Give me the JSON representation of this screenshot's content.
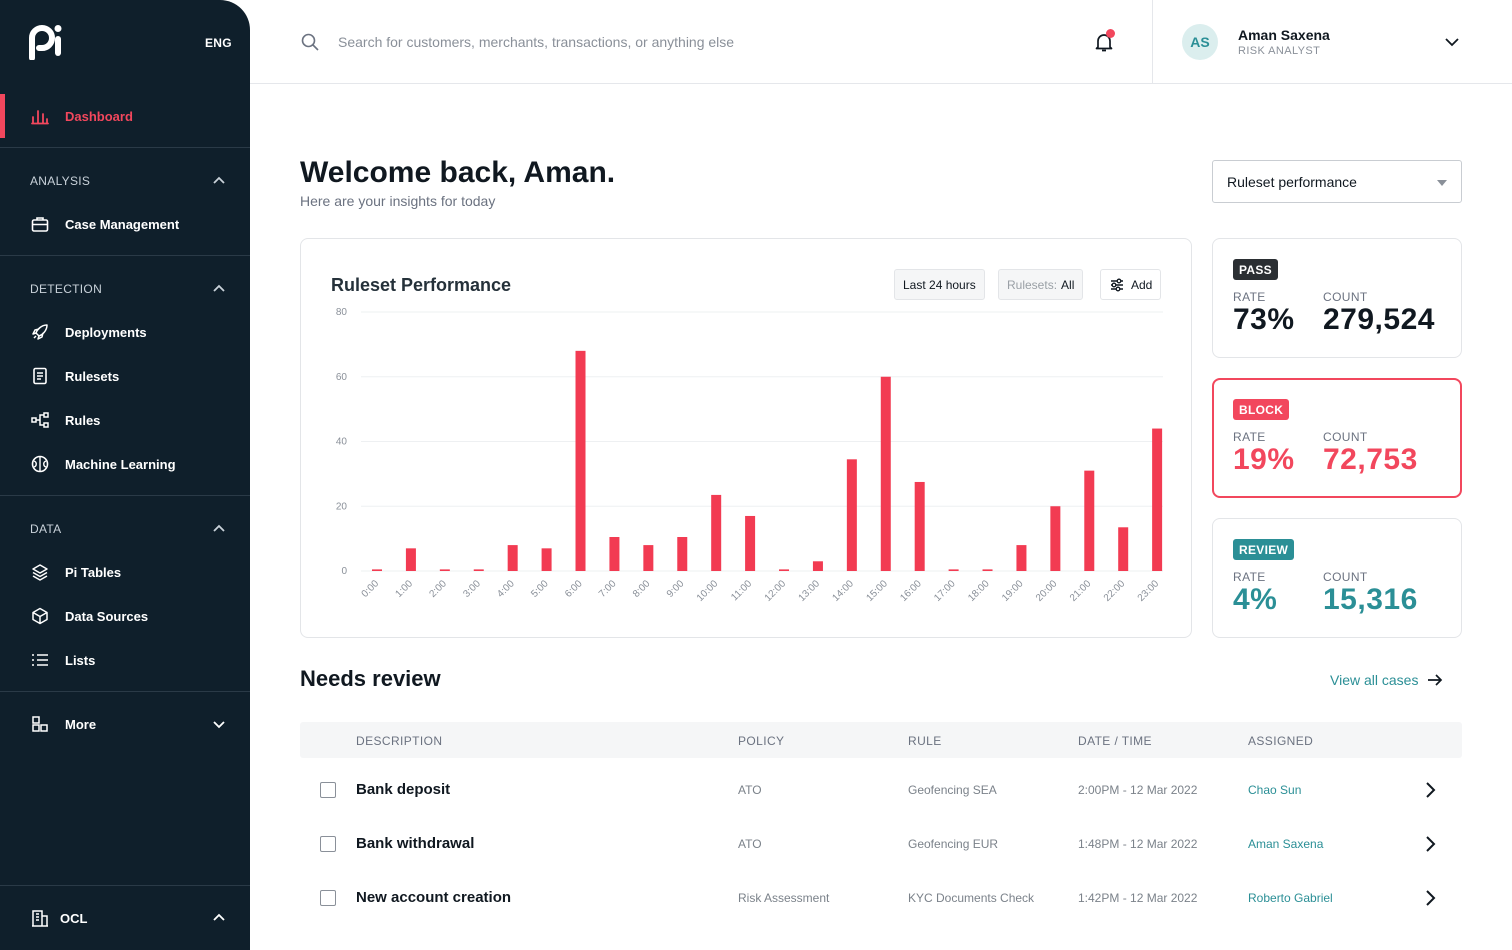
{
  "sidebar": {
    "lang": "ENG",
    "dashboard": "Dashboard",
    "sections": [
      {
        "title": "ANALYSIS",
        "items": [
          "Case Management"
        ]
      },
      {
        "title": "DETECTION",
        "items": [
          "Deployments",
          "Rulesets",
          "Rules",
          "Machine Learning"
        ]
      },
      {
        "title": "DATA",
        "items": [
          "Pi Tables",
          "Data Sources",
          "Lists"
        ]
      }
    ],
    "more": "More",
    "org": "OCL"
  },
  "header": {
    "search_placeholder": "Search for customers, merchants, transactions, or anything else",
    "user": {
      "initials": "AS",
      "name": "Aman Saxena",
      "role": "RISK ANALYST"
    }
  },
  "main": {
    "welcome": "Welcome back, Aman.",
    "subtitle": "Here are your insights for today",
    "dropdown": "Ruleset performance",
    "chart_card": {
      "title": "Ruleset Performance",
      "range_button": "Last 24 hours",
      "rulesets_label": "Rulesets:",
      "rulesets_value": "All",
      "add_button": "Add"
    },
    "stats": [
      {
        "badge": "PASS",
        "rate_label": "RATE",
        "rate": "73%",
        "count_label": "COUNT",
        "count": "279,524",
        "color": "#101820",
        "badge_bg": "#2b2f33",
        "badge_fg": "#ffffff"
      },
      {
        "badge": "BLOCK",
        "rate_label": "RATE",
        "rate": "19%",
        "count_label": "COUNT",
        "count": "72,753",
        "color": "#f2475d",
        "badge_bg": "#f2475d",
        "badge_fg": "#ffffff"
      },
      {
        "badge": "REVIEW",
        "rate_label": "RATE",
        "rate": "4%",
        "count_label": "COUNT",
        "count": "15,316",
        "color": "#2b8f96",
        "badge_bg": "#2b8f96",
        "badge_fg": "#ffffff"
      }
    ],
    "needs_review": {
      "title": "Needs review",
      "view_all": "View all cases",
      "columns": [
        "DESCRIPTION",
        "POLICY",
        "RULE",
        "DATE / TIME",
        "ASSIGNED"
      ],
      "rows": [
        {
          "description": "Bank deposit",
          "policy": "ATO",
          "rule": "Geofencing SEA",
          "datetime": "2:00PM - 12 Mar 2022",
          "assigned": "Chao Sun"
        },
        {
          "description": "Bank withdrawal",
          "policy": "ATO",
          "rule": "Geofencing EUR",
          "datetime": "1:48PM - 12 Mar 2022",
          "assigned": "Aman Saxena"
        },
        {
          "description": "New account creation",
          "policy": "Risk Assessment",
          "rule": "KYC Documents Check",
          "datetime": "1:42PM - 12 Mar 2022",
          "assigned": "Roberto Gabriel"
        }
      ]
    }
  },
  "chart_data": {
    "type": "bar",
    "categories": [
      "0:00",
      "1:00",
      "2:00",
      "3:00",
      "4:00",
      "5:00",
      "6:00",
      "7:00",
      "8:00",
      "9:00",
      "10:00",
      "11:00",
      "12:00",
      "13:00",
      "14:00",
      "15:00",
      "16:00",
      "17:00",
      "18:00",
      "19:00",
      "20:00",
      "21:00",
      "22:00",
      "23:00"
    ],
    "values": [
      0.5,
      7,
      0.5,
      0.5,
      8,
      7,
      68,
      10.5,
      8,
      10.5,
      23.5,
      17,
      0.5,
      3,
      34.5,
      60,
      27.5,
      0.5,
      0.5,
      8,
      20,
      31,
      13.5,
      44
    ],
    "yticks": [
      0,
      20,
      40,
      60,
      80
    ],
    "ylim": [
      0,
      80
    ],
    "color": "#f23b52",
    "grid": true
  }
}
